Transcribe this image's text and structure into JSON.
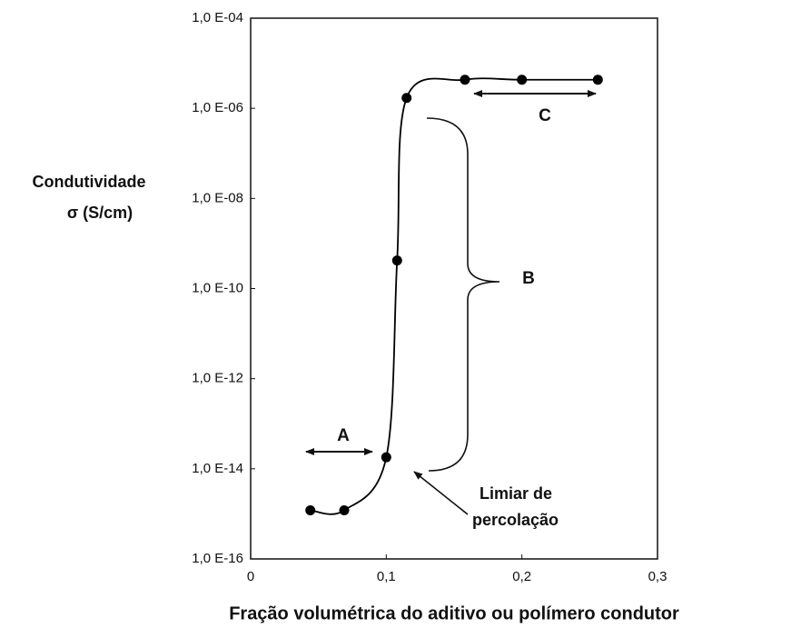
{
  "chart_data": {
    "type": "scatter",
    "y_label_lines": [
      "Condutividade",
      "σ (S/cm)"
    ],
    "x_label": "Fração volumétrica do aditivo ou polímero condutor",
    "series": [
      {
        "color": "#000000",
        "x": [
          0.044,
          0.069,
          0.1,
          0.108,
          0.115,
          0.158,
          0.2,
          0.256
        ],
        "values": [
          1.2e-15,
          1.2e-15,
          1.8e-14,
          4.2e-10,
          1.7e-06,
          4.3e-06,
          4.3e-06,
          4.3e-06
        ]
      }
    ],
    "xlim": [
      0,
      0.3
    ],
    "xticks": [
      0,
      {
        "value": 0.1,
        "label": "0,1"
      },
      {
        "value": 0.2,
        "label": "0,2"
      },
      {
        "value": 0.3,
        "label": "0,3"
      }
    ],
    "ylim": [
      1e-16,
      0.0001
    ],
    "yticks": [
      {
        "value": 1e-16,
        "label": "1,0 E-16"
      },
      {
        "value": 1e-14,
        "label": "1,0 E-14"
      },
      {
        "value": 1e-12,
        "label": "1,0 E-12"
      },
      {
        "value": 1e-10,
        "label": "1,0 E-10"
      },
      {
        "value": 1e-08,
        "label": "1,0 E-08"
      },
      {
        "value": 1e-06,
        "label": "1,0 E-06"
      },
      {
        "value": 0.0001,
        "label": "1,0 E-04"
      }
    ],
    "y_scale": "log",
    "smooth_line": true,
    "annotations": [
      "A",
      "B",
      "C",
      "Limiar de",
      "percolação"
    ]
  }
}
